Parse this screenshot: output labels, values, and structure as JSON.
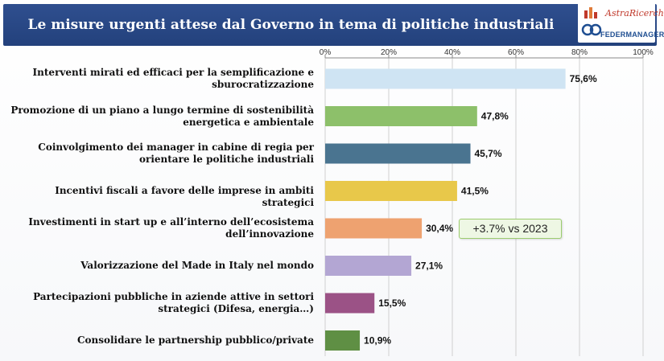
{
  "header": {
    "title": "Le misure urgenti attese dal Governo in tema di politiche industriali",
    "logo_astra": "AstraRicerche",
    "logo_federmanager": "FEDERMANAGER"
  },
  "chart_data": {
    "type": "bar",
    "orientation": "horizontal",
    "title": "Le misure urgenti attese dal Governo in tema di politiche industriali",
    "xlim": [
      0,
      100
    ],
    "ticks": [
      "0%",
      "20%",
      "40%",
      "60%",
      "80%",
      "100%"
    ],
    "tick_values": [
      0,
      20,
      40,
      60,
      80,
      100
    ],
    "grid": true,
    "categories": [
      "Interventi mirati ed efficaci per la semplificazione e sburocratizzazione",
      "Promozione di un piano a lungo termine di sostenibilità energetica e ambientale",
      "Coinvolgimento dei manager in cabine di regia per orientare le politiche industriali",
      "Incentivi fiscali a favore delle imprese in ambiti strategici",
      "Investimenti in start up e all’interno dell’ecosistema dell’innovazione",
      "Valorizzazione del Made in Italy nel mondo",
      "Partecipazioni pubbliche in aziende attive in settori strategici (Difesa, energia…)",
      "Consolidare le partnership pubblico/private"
    ],
    "label_lines": [
      [
        "Interventi mirati ed efficaci per la semplificazione e",
        "sburocratizzazione"
      ],
      [
        "Promozione di un piano a lungo termine di sostenibilità",
        "energetica e ambientale"
      ],
      [
        "Coinvolgimento dei manager in cabine di regia per",
        "orientare le politiche industriali"
      ],
      [
        "Incentivi fiscali a favore delle imprese in ambiti strategici"
      ],
      [
        "Investimenti in start up e all’interno dell’ecosistema",
        "dell’innovazione"
      ],
      [
        "Valorizzazione del Made in Italy nel mondo"
      ],
      [
        "Partecipazioni pubbliche in aziende attive in settori",
        "strategici (Difesa, energia…)"
      ],
      [
        "Consolidare le partnership pubblico/private"
      ]
    ],
    "values": [
      75.6,
      47.8,
      45.7,
      41.5,
      30.4,
      27.1,
      15.5,
      10.9
    ],
    "value_labels": [
      "75,6%",
      "47,8%",
      "45,7%",
      "41,5%",
      "30,4%",
      "27,1%",
      "15,5%",
      "10,9%"
    ],
    "colors": [
      "#cfe4f3",
      "#8dc06a",
      "#4a7490",
      "#e8c84a",
      "#eea270",
      "#b3a6d3",
      "#9b5286",
      "#5f8f44"
    ],
    "annotation": "+3.7% vs 2023"
  }
}
